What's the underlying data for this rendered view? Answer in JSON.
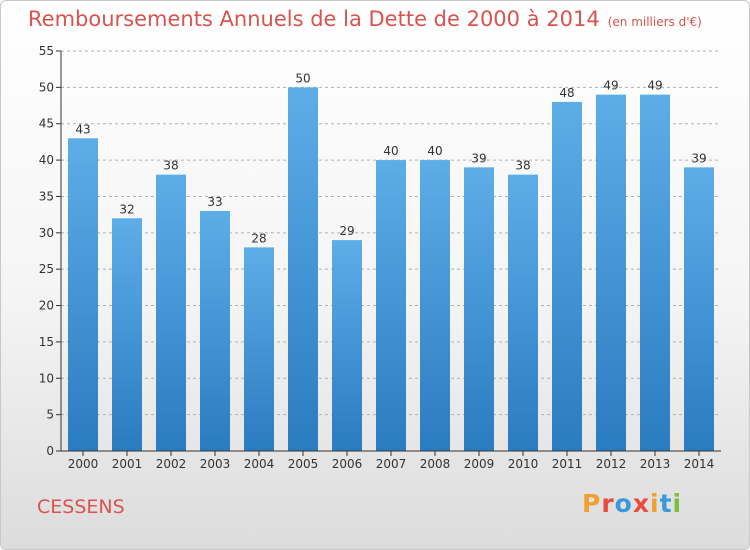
{
  "header": {
    "title": "Remboursements Annuels de la Dette de 2000 à 2014",
    "unit": "(en milliers d'€)"
  },
  "footer": {
    "commune": "CESSENS",
    "logo": "Proxiti"
  },
  "colors": {
    "title": "#d9534f",
    "bar_top": "#5dade8",
    "bar_bottom": "#2a7cc0",
    "grid": "#b0b0b0",
    "axis": "#333333",
    "logo": [
      "#f0a030",
      "#e84c3c",
      "#3a9ad9",
      "#e84c3c",
      "#f0a030",
      "#3a9ad9",
      "#7bbf3a"
    ]
  },
  "chart_data": {
    "type": "bar",
    "title": "Remboursements Annuels de la Dette de 2000 à 2014",
    "xlabel": "",
    "ylabel": "",
    "ylim": [
      0,
      55
    ],
    "yticks": [
      0,
      5,
      10,
      15,
      20,
      25,
      30,
      35,
      40,
      45,
      50,
      55
    ],
    "grid": "horizontal-dashed",
    "categories": [
      "2000",
      "2001",
      "2002",
      "2003",
      "2004",
      "2005",
      "2006",
      "2007",
      "2008",
      "2009",
      "2010",
      "2011",
      "2012",
      "2013",
      "2014"
    ],
    "values": [
      43,
      32,
      38,
      33,
      28,
      50,
      29,
      40,
      40,
      39,
      38,
      48,
      49,
      49,
      39
    ]
  }
}
